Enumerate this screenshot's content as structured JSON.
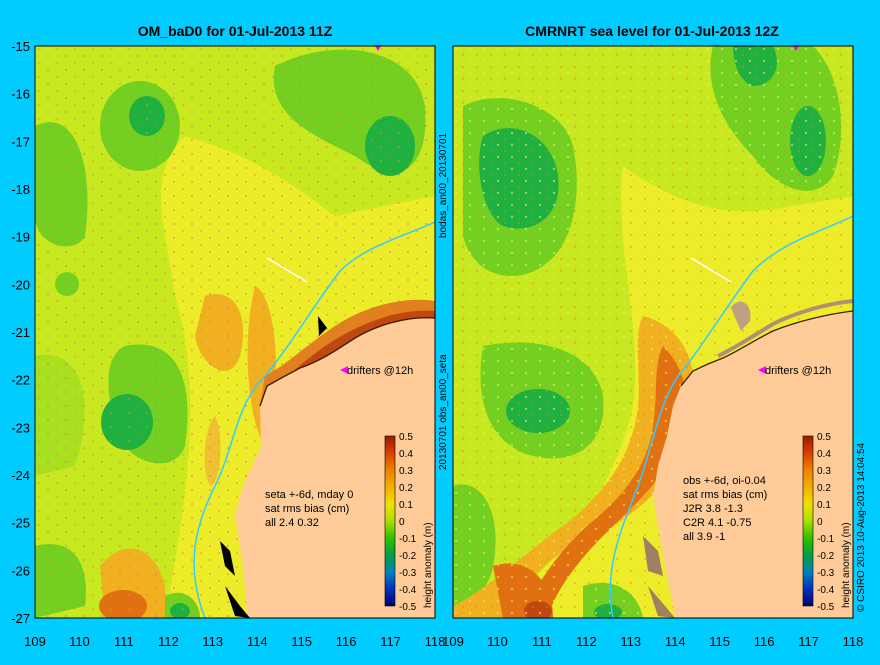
{
  "panels": [
    {
      "id": "left",
      "title": "OM_baD0 for 01-Jul-2013 11Z",
      "drifters_label": "drifters @12h",
      "stats_lines": [
        "seta +-6d, mday 0",
        "sat rms bias (cm)",
        "all 2.4 0.32"
      ]
    },
    {
      "id": "right",
      "title": "CMRNRT sea level  for 01-Jul-2013 12Z",
      "drifters_label": "drifters @12h",
      "stats_lines": [
        "obs +-6d, oi-0.04",
        "sat rms bias (cm)",
        "J2R   3.8 -1.3",
        "C2R   4.1 -0.75",
        "all 3.9 -1"
      ]
    }
  ],
  "axes": {
    "lat_labels": [
      "-15",
      "-16",
      "-17",
      "-18",
      "-19",
      "-20",
      "-21",
      "-22",
      "-23",
      "-24",
      "-25",
      "-26",
      "-27"
    ],
    "lon_labels": [
      "109",
      "110",
      "111",
      "112",
      "113",
      "114",
      "115",
      "116",
      "117",
      "118"
    ]
  },
  "colorbar": {
    "label": "height anomaly (m)",
    "ticks": [
      "0.5",
      "0.4",
      "0.3",
      "0.2",
      "0.1",
      "0",
      "-0.1",
      "-0.2",
      "-0.3",
      "-0.4",
      "-0.5"
    ]
  },
  "middle_labels": {
    "top": "bodas_an00_20130701",
    "bottom": "20130701 obs_an00_seta"
  },
  "copyright": "© CSIRO 2013   10-Aug-2013 14:04:54",
  "colors": {
    "background": "#00ccff",
    "land": "#ffcc99",
    "coastline_current": "#33ccff"
  }
}
